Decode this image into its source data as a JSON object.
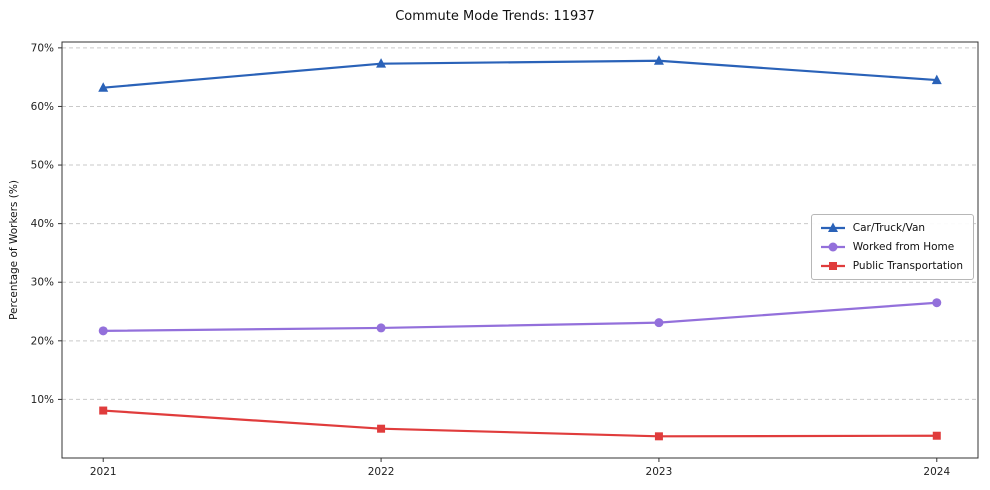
{
  "chart_data": {
    "type": "line",
    "title": "Commute Mode Trends: 11937",
    "xlabel": "",
    "ylabel": "Percentage of Workers (%)",
    "categories": [
      "2021",
      "2022",
      "2023",
      "2024"
    ],
    "series": [
      {
        "name": "Car/Truck/Van",
        "values": [
          63.2,
          67.3,
          67.8,
          64.5
        ],
        "color": "#2a62b8",
        "marker": "triangle"
      },
      {
        "name": "Worked from Home",
        "values": [
          21.7,
          22.2,
          23.1,
          26.5
        ],
        "color": "#9370db",
        "marker": "circle"
      },
      {
        "name": "Public Transportation",
        "values": [
          8.1,
          5.0,
          3.7,
          3.8
        ],
        "color": "#e03c3c",
        "marker": "square"
      }
    ],
    "y_ticks": [
      10,
      20,
      30,
      40,
      50,
      60,
      70
    ],
    "y_tick_suffix": "%",
    "ylim": [
      0,
      71
    ],
    "grid": "horizontal-dashed",
    "legend_position": "center-right",
    "colors": {
      "grid": "#c9c9c9",
      "axis": "#333333",
      "tick_label": "#222222"
    }
  }
}
